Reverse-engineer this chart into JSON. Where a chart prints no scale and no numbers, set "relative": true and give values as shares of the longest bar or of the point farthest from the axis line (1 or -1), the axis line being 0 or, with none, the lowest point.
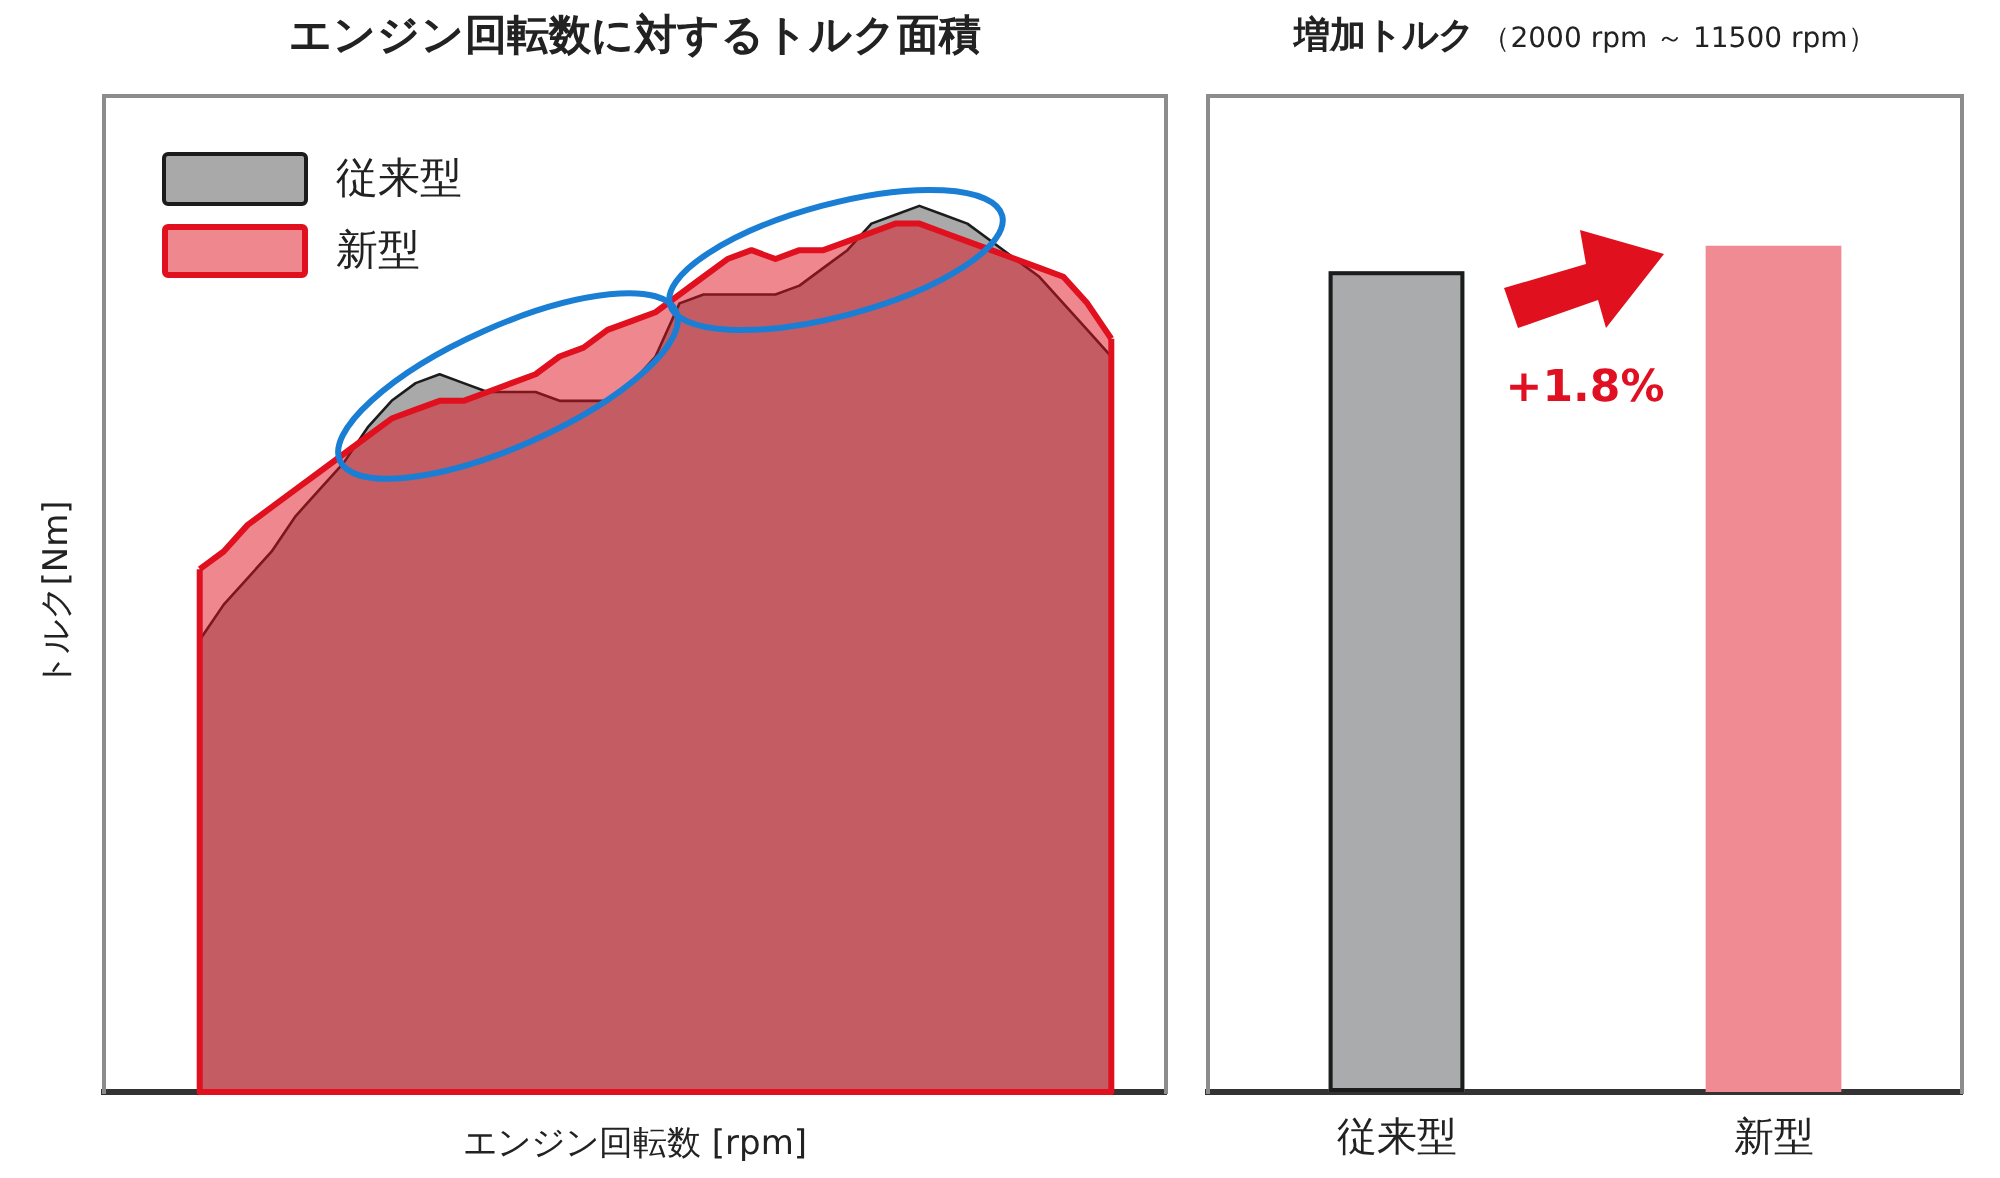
{
  "chart_data": [
    {
      "type": "area",
      "title": "エンジン回転数に対するトルク面積",
      "xlabel": "エンジン回転数 [rpm]",
      "ylabel": "トルク[Nm]",
      "relative": true,
      "legend": "top left",
      "categories": [
        null,
        null,
        null,
        null,
        null,
        null,
        null,
        null,
        null,
        null,
        null,
        null,
        null,
        null,
        null,
        null,
        null,
        null,
        null,
        null,
        null,
        null,
        null,
        null,
        null,
        null,
        null,
        null,
        null,
        null,
        null,
        null,
        null,
        null,
        null,
        null,
        null,
        null,
        null
      ],
      "series": [
        {
          "name": "従来型",
          "color": "#a9a9a9",
          "values": [
            0.51,
            0.55,
            0.58,
            0.61,
            0.65,
            0.68,
            0.71,
            0.75,
            0.78,
            0.8,
            0.81,
            0.8,
            0.79,
            0.79,
            0.79,
            0.78,
            0.78,
            0.78,
            0.8,
            0.83,
            0.89,
            0.9,
            0.9,
            0.9,
            0.9,
            0.91,
            0.93,
            0.95,
            0.98,
            0.99,
            1.0,
            0.99,
            0.98,
            0.96,
            0.94,
            0.92,
            0.89,
            0.86,
            0.83
          ]
        },
        {
          "name": "新型",
          "color": "#e0101e",
          "values": [
            0.59,
            0.61,
            0.64,
            0.66,
            0.68,
            0.7,
            0.72,
            0.74,
            0.76,
            0.77,
            0.78,
            0.78,
            0.79,
            0.8,
            0.81,
            0.83,
            0.84,
            0.86,
            0.87,
            0.88,
            0.9,
            0.92,
            0.94,
            0.95,
            0.94,
            0.95,
            0.95,
            0.96,
            0.97,
            0.98,
            0.98,
            0.97,
            0.96,
            0.95,
            0.94,
            0.93,
            0.92,
            0.89,
            0.85
          ]
        }
      ]
    },
    {
      "type": "bar",
      "title": "増加トルク",
      "subtitle": "（2000 rpm ～ 11500 rpm）",
      "relative": true,
      "categories": [
        "従来型",
        "新型"
      ],
      "values": [
        0.97,
        1
      ],
      "colors": [
        "#a9abad",
        "#f08a93"
      ],
      "annotations": [
        "+1.8%"
      ]
    }
  ]
}
